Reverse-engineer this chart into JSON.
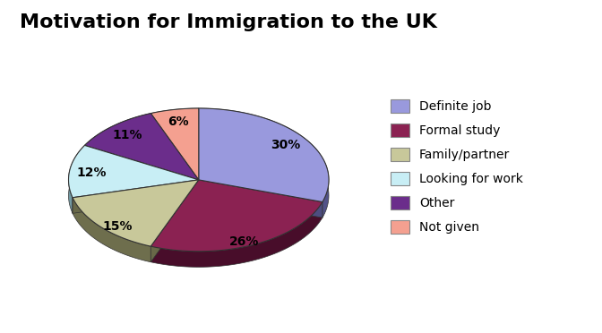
{
  "title": "Motivation for Immigration to the UK",
  "labels": [
    "Definite job",
    "Formal study",
    "Family/partner",
    "Looking for work",
    "Other",
    "Not given"
  ],
  "values": [
    30,
    26,
    15,
    12,
    11,
    6
  ],
  "colors": [
    "#9999dd",
    "#8B2252",
    "#c8c89a",
    "#c8eef5",
    "#6B2D8B",
    "#f4a090"
  ],
  "dark_colors": [
    "#6666aa",
    "#5a1035",
    "#8a8a60",
    "#90c0cc",
    "#3a1555",
    "#c07060"
  ],
  "title_fontsize": 16,
  "pct_fontsize": 10,
  "legend_fontsize": 10,
  "startangle": 90,
  "depth": 0.25,
  "n_layers": 20,
  "yscale": 0.5
}
